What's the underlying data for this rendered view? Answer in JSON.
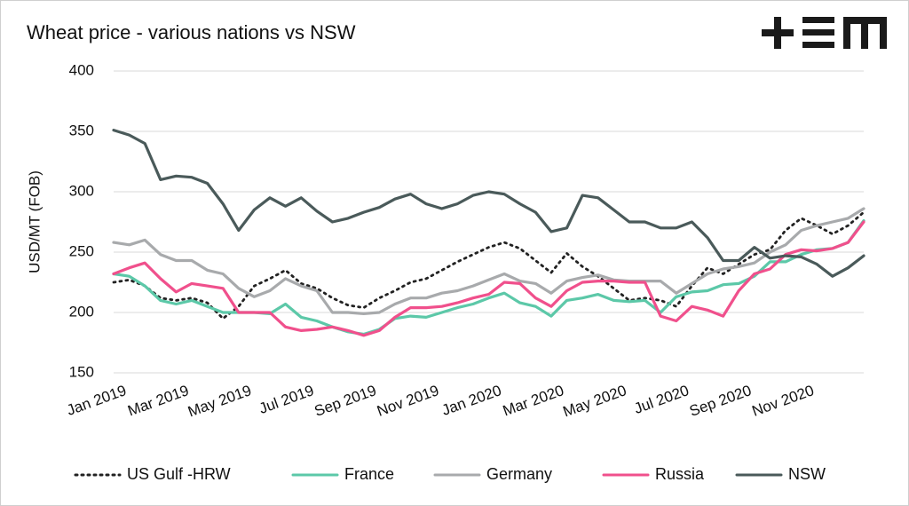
{
  "chart_data": {
    "type": "line",
    "title": "Wheat price - various nations vs NSW",
    "y_label": "USD/MT (FOB)",
    "categories": [
      "Jan 2019",
      null,
      null,
      null,
      "Mar 2019",
      null,
      null,
      null,
      "May 2019",
      null,
      null,
      null,
      "Jul 2019",
      null,
      null,
      null,
      "Sep 2019",
      null,
      null,
      null,
      "Nov 2019",
      null,
      null,
      null,
      "Jan 2020",
      null,
      null,
      null,
      "Mar 2020",
      null,
      null,
      null,
      "May 2020",
      null,
      null,
      null,
      "Jul 2020",
      null,
      null,
      null,
      "Sep 2020",
      null,
      null,
      null,
      "Nov 2020",
      null,
      null,
      null,
      null
    ],
    "ylim": [
      150,
      400
    ],
    "yticks": [
      150,
      200,
      250,
      300,
      350,
      400
    ],
    "grid": true,
    "series": [
      {
        "name": "US Gulf -HRW",
        "color": "#222222",
        "line_style": "dotted",
        "values": [
          225,
          227,
          222,
          212,
          210,
          212,
          208,
          195,
          205,
          222,
          228,
          235,
          224,
          220,
          212,
          206,
          204,
          212,
          218,
          225,
          228,
          235,
          242,
          248,
          254,
          258,
          253,
          243,
          233,
          249,
          238,
          230,
          220,
          210,
          212,
          210,
          205,
          222,
          237,
          232,
          240,
          248,
          252,
          268,
          278,
          272,
          265,
          272,
          283
        ]
      },
      {
        "name": "France",
        "color": "#5cc8a8",
        "line_style": "solid",
        "values": [
          232,
          230,
          222,
          210,
          207,
          210,
          205,
          200,
          200,
          200,
          199,
          207,
          196,
          193,
          188,
          184,
          182,
          186,
          195,
          197,
          196,
          200,
          204,
          207,
          212,
          216,
          208,
          205,
          197,
          210,
          212,
          215,
          210,
          209,
          210,
          200,
          213,
          217,
          218,
          223,
          224,
          230,
          242,
          242,
          248,
          252,
          253,
          258,
          276
        ]
      },
      {
        "name": "Germany",
        "color": "#a8aaac",
        "line_style": "solid",
        "values": [
          258,
          256,
          260,
          248,
          243,
          243,
          235,
          232,
          220,
          213,
          218,
          228,
          222,
          218,
          200,
          200,
          199,
          200,
          207,
          212,
          212,
          216,
          218,
          222,
          227,
          232,
          226,
          224,
          216,
          226,
          229,
          231,
          227,
          226,
          226,
          226,
          216,
          224,
          232,
          236,
          238,
          241,
          250,
          256,
          268,
          272,
          275,
          278,
          286
        ]
      },
      {
        "name": "Russia",
        "color": "#f0508c",
        "line_style": "solid",
        "values": [
          232,
          237,
          241,
          228,
          217,
          224,
          222,
          220,
          200,
          200,
          200,
          188,
          185,
          186,
          188,
          185,
          181,
          185,
          196,
          204,
          204,
          205,
          208,
          212,
          215,
          225,
          224,
          212,
          205,
          218,
          225,
          226,
          226,
          225,
          225,
          197,
          193,
          205,
          202,
          197,
          218,
          232,
          236,
          248,
          252,
          251,
          253,
          258,
          275
        ]
      },
      {
        "name": "NSW",
        "color": "#4a5a5a",
        "line_style": "solid",
        "values": [
          351,
          347,
          340,
          310,
          313,
          312,
          307,
          290,
          268,
          285,
          295,
          288,
          295,
          284,
          275,
          278,
          283,
          287,
          294,
          298,
          290,
          286,
          290,
          297,
          300,
          298,
          290,
          283,
          267,
          270,
          297,
          295,
          285,
          275,
          275,
          270,
          270,
          275,
          262,
          243,
          243,
          254,
          245,
          247,
          246,
          240,
          230,
          237,
          247
        ]
      }
    ]
  }
}
